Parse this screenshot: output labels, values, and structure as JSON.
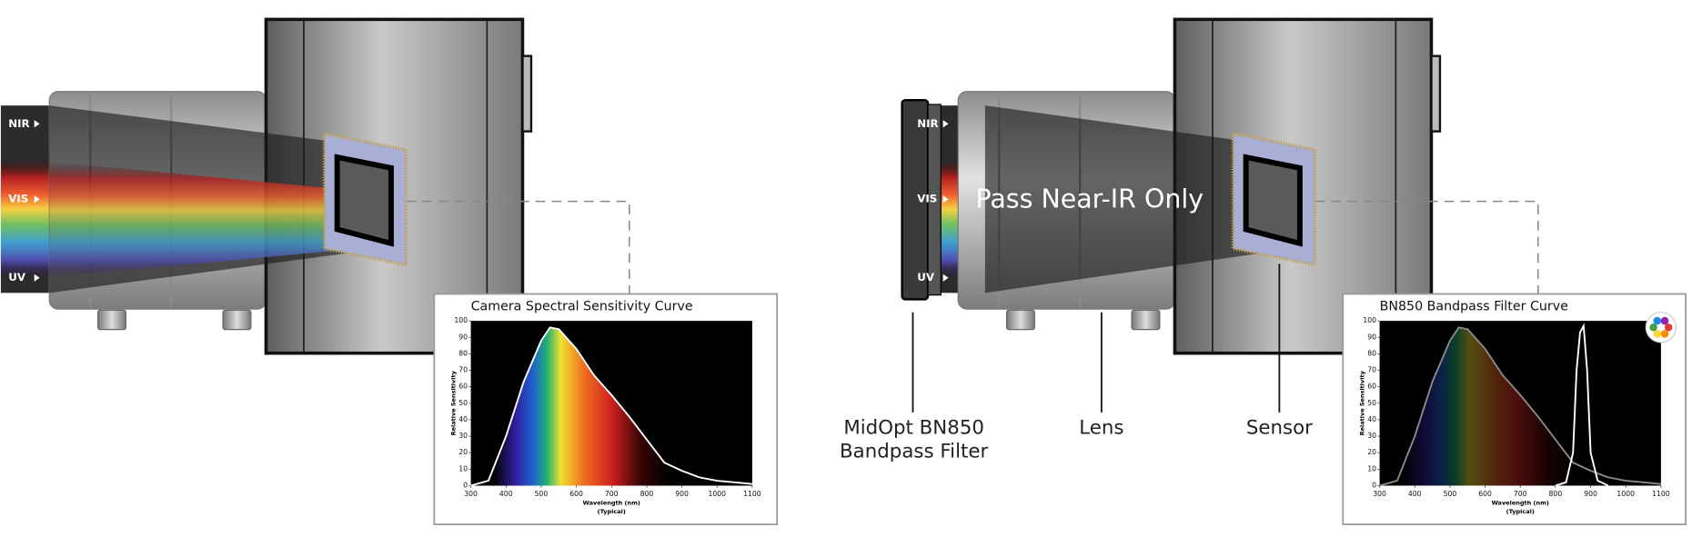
{
  "left": {
    "bands": [
      "NIR",
      "VIS",
      "UV"
    ],
    "chart": {
      "type": "line",
      "title": "Camera Spectral Sensitivity Curve",
      "y_label": "Relative Sensitivity",
      "x_label": "Wavelength (nm)",
      "x_note": "(Typical)",
      "xlim": [
        300,
        1100
      ],
      "ylim": [
        0,
        100
      ],
      "xticks": [
        300,
        400,
        500,
        600,
        700,
        800,
        900,
        1000,
        1100
      ],
      "yticks": [
        0,
        10,
        20,
        30,
        40,
        50,
        60,
        70,
        80,
        90,
        100
      ],
      "series": [
        {
          "color": "#ffffff",
          "x": [
            300,
            350,
            400,
            450,
            500,
            525,
            550,
            600,
            650,
            700,
            750,
            800,
            850,
            900,
            950,
            1000,
            1050,
            1100
          ],
          "values": [
            0,
            3,
            30,
            63,
            88,
            96,
            95,
            83,
            67,
            55,
            42,
            28,
            14,
            9,
            5,
            3,
            2,
            1
          ]
        }
      ]
    }
  },
  "right": {
    "bands": [
      "NIR",
      "VIS",
      "UV"
    ],
    "overlay": "Pass Near-IR Only",
    "callouts": [
      {
        "lines": [
          "MidOpt BN850",
          "Bandpass Filter"
        ]
      },
      {
        "lines": [
          "Lens"
        ]
      },
      {
        "lines": [
          "Sensor"
        ]
      }
    ],
    "chart": {
      "type": "line",
      "title": "BN850 Bandpass Filter Curve",
      "y_label": "Relative Sensitivity",
      "x_label": "Wavelength (nm)",
      "x_note": "(Typical)",
      "xlim": [
        300,
        1100
      ],
      "ylim": [
        0,
        100
      ],
      "xticks": [
        300,
        400,
        500,
        600,
        700,
        800,
        900,
        1000,
        1100
      ],
      "yticks": [
        0,
        10,
        20,
        30,
        40,
        50,
        60,
        70,
        80,
        90,
        100
      ],
      "series": [
        {
          "color": "#8a8a8a",
          "x": [
            300,
            350,
            400,
            450,
            500,
            525,
            550,
            600,
            650,
            700,
            750,
            800,
            850,
            900,
            950,
            1000,
            1050,
            1100
          ],
          "values": [
            0,
            3,
            30,
            63,
            88,
            96,
            95,
            83,
            67,
            55,
            42,
            28,
            14,
            9,
            5,
            3,
            2,
            1
          ]
        },
        {
          "color": "#ffffff",
          "x": [
            800,
            830,
            850,
            860,
            870,
            880,
            890,
            900,
            920,
            950
          ],
          "values": [
            0,
            2,
            20,
            70,
            93,
            97,
            70,
            20,
            3,
            0
          ]
        }
      ]
    }
  }
}
